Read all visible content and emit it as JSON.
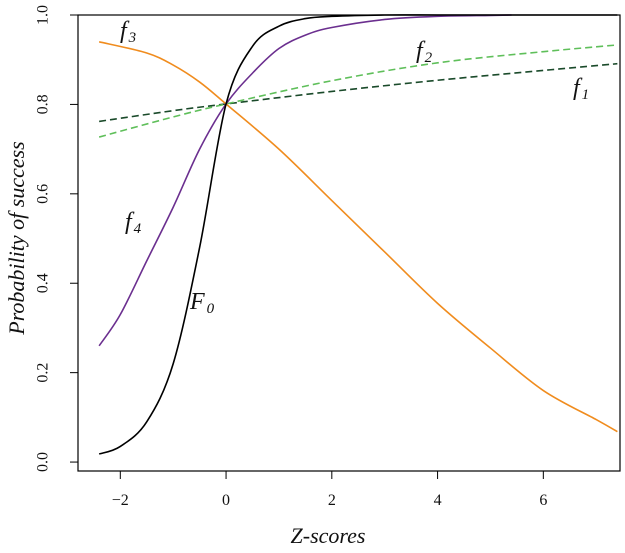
{
  "chart_data": {
    "type": "line",
    "xlabel": "Z-scores",
    "ylabel": "Probability of success",
    "xlim": [
      -2.8,
      7.45
    ],
    "ylim": [
      -0.02,
      1.0
    ],
    "xticks": [
      -2,
      0,
      2,
      4,
      6
    ],
    "yticks": [
      0.0,
      0.2,
      0.4,
      0.6,
      0.8,
      1.0
    ],
    "xtick_labels": [
      "−2",
      "0",
      "2",
      "4",
      "6"
    ],
    "ytick_labels": [
      "0.0",
      "0.2",
      "0.4",
      "0.6",
      "0.8",
      "1.0"
    ],
    "grid": false,
    "legend": "none",
    "series": [
      {
        "name": "f1",
        "label_main": "f",
        "label_sub": "1",
        "color": "#1a4a2a",
        "dash": true,
        "x": [
          -2.4,
          -1,
          0,
          2,
          4,
          6,
          7.4
        ],
        "y": [
          0.762,
          0.786,
          0.801,
          0.829,
          0.854,
          0.876,
          0.891
        ]
      },
      {
        "name": "f2",
        "label_main": "f",
        "label_sub": "2",
        "color": "#5fbf5a",
        "dash": true,
        "x": [
          -2.4,
          -1,
          0,
          2,
          4,
          6,
          7.4
        ],
        "y": [
          0.727,
          0.772,
          0.801,
          0.853,
          0.893,
          0.918,
          0.933
        ]
      },
      {
        "name": "f3",
        "label_main": "f",
        "label_sub": "3",
        "color": "#f08c1e",
        "dash": false,
        "x": [
          -2.4,
          -1.5,
          -1,
          -0.5,
          0,
          1,
          2,
          3,
          4,
          5,
          6,
          7,
          7.4
        ],
        "y": [
          0.94,
          0.915,
          0.888,
          0.85,
          0.801,
          0.7,
          0.585,
          0.47,
          0.355,
          0.255,
          0.16,
          0.095,
          0.068
        ]
      },
      {
        "name": "f4",
        "label_main": "f",
        "label_sub": "4",
        "color": "#6b2f8f",
        "dash": false,
        "x": [
          -2.4,
          -2,
          -1.5,
          -1,
          -0.5,
          0,
          0.5,
          1,
          1.5,
          2,
          3,
          4,
          5,
          5.4
        ],
        "y": [
          0.26,
          0.33,
          0.45,
          0.57,
          0.7,
          0.801,
          0.87,
          0.925,
          0.955,
          0.972,
          0.99,
          0.997,
          0.999,
          1.0
        ]
      },
      {
        "name": "F0",
        "label_main": "F",
        "label_sub": "0",
        "color": "#000000",
        "dash": false,
        "x": [
          -2.4,
          -2,
          -1.5,
          -1,
          -0.5,
          0,
          0.5,
          1,
          1.5,
          2,
          3,
          4,
          5,
          7.4
        ],
        "y": [
          0.018,
          0.035,
          0.09,
          0.22,
          0.48,
          0.801,
          0.93,
          0.975,
          0.992,
          0.997,
          1.0,
          1.0,
          1.0,
          1.0
        ]
      }
    ]
  }
}
